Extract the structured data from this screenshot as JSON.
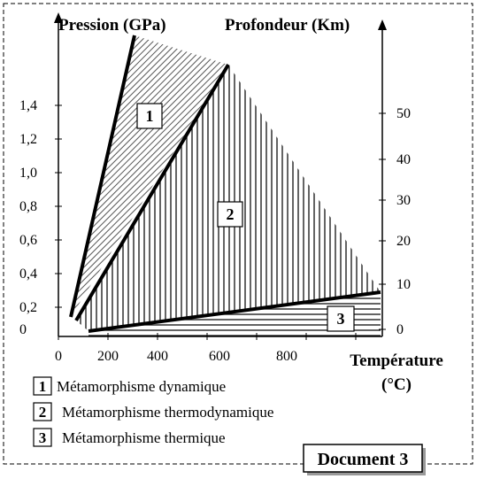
{
  "chart_data": {
    "type": "area",
    "left_axis": {
      "title": "Pression (GPa)",
      "ticks": [
        "1,4",
        "1,2",
        "1,0",
        "0,8",
        "0,6",
        "0,4",
        "0,2",
        "0"
      ]
    },
    "right_axis": {
      "title": "Profondeur (Km)",
      "ticks": [
        "50",
        "40",
        "30",
        "20",
        "10",
        "0"
      ]
    },
    "x_axis": {
      "title_line1": "Température",
      "title_line2": "(°C)",
      "ticks": [
        "0",
        "200",
        "400",
        "600",
        "800"
      ]
    },
    "zones": [
      {
        "id": "1",
        "label": "1",
        "name": "Métamorphisme dynamique",
        "hatch": "diagonal"
      },
      {
        "id": "2",
        "label": "2",
        "name": "Métamorphisme thermodynamique",
        "hatch": "vertical"
      },
      {
        "id": "3",
        "label": "3",
        "name": "Métamorphisme thermique",
        "hatch": "horizontal"
      }
    ]
  },
  "legend": [
    {
      "num": "1",
      "text": "Métamorphisme dynamique"
    },
    {
      "num": "2",
      "text": "Métamorphisme thermodynamique"
    },
    {
      "num": "3",
      "text": "Métamorphisme thermique"
    }
  ],
  "document_label": "Document 3"
}
